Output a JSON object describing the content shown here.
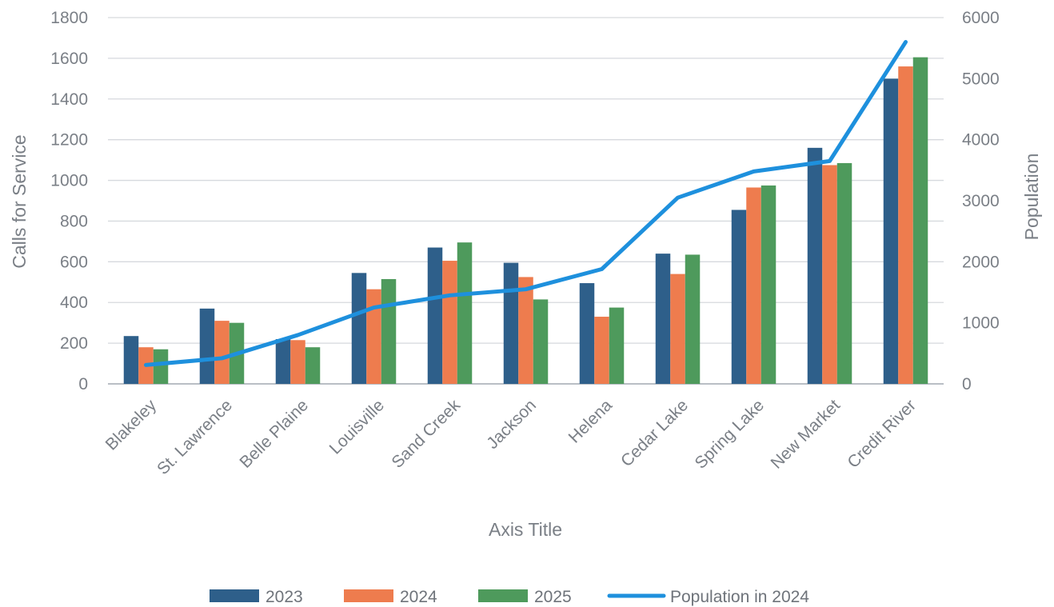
{
  "chart_data": {
    "type": "bar",
    "categories": [
      "Blakeley",
      "St. Lawrence",
      "Belle Plaine",
      "Louisville",
      "Sand Creek",
      "Jackson",
      "Helena",
      "Cedar Lake",
      "Spring Lake",
      "New Market",
      "Credit River"
    ],
    "series": [
      {
        "name": "2023",
        "type": "bar",
        "axis": "left",
        "color": "#2e5f8a",
        "values": [
          235,
          370,
          220,
          545,
          670,
          595,
          495,
          640,
          855,
          1160,
          1500
        ]
      },
      {
        "name": "2024",
        "type": "bar",
        "axis": "left",
        "color": "#ee7c4e",
        "values": [
          180,
          310,
          215,
          465,
          605,
          525,
          330,
          540,
          965,
          1075,
          1560
        ]
      },
      {
        "name": "2025",
        "type": "bar",
        "axis": "left",
        "color": "#4e9a5c",
        "values": [
          170,
          300,
          180,
          515,
          695,
          415,
          375,
          635,
          975,
          1085,
          1605
        ]
      },
      {
        "name": "Population in 2024",
        "type": "line",
        "axis": "right",
        "color": "#1e90dd",
        "values": [
          310,
          420,
          800,
          1250,
          1450,
          1550,
          1880,
          3050,
          3480,
          3650,
          5600
        ]
      }
    ],
    "ylabel": "Calls for Service",
    "y2label": "Population",
    "xlabel": "Axis Title",
    "ylim": [
      0,
      1800
    ],
    "y2lim": [
      0,
      6000
    ],
    "yticks": [
      "0",
      "200",
      "400",
      "600",
      "800",
      "1000",
      "1200",
      "1400",
      "1600",
      "1800"
    ],
    "y2ticks": [
      "0",
      "1000",
      "2000",
      "3000",
      "4000",
      "5000",
      "6000"
    ],
    "grid": true,
    "legend": "bottom"
  }
}
